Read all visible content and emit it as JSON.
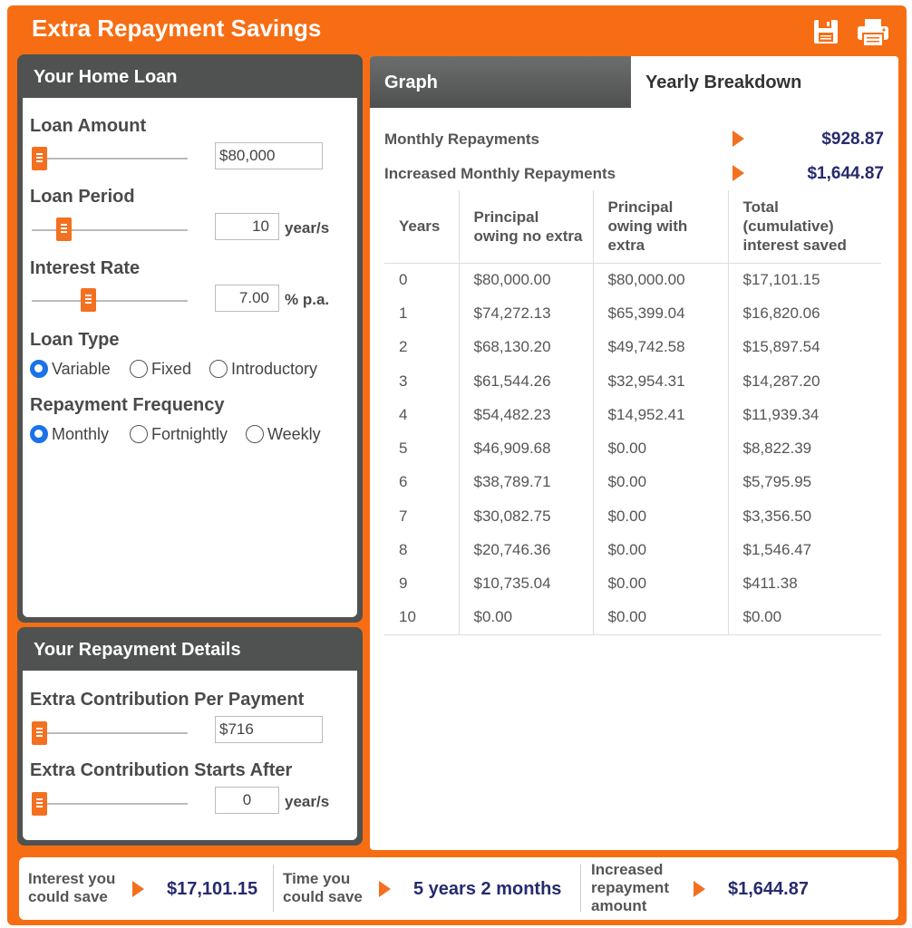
{
  "app": {
    "title": "Extra Repayment Savings"
  },
  "loan_panel": {
    "title": "Your Home Loan",
    "loan_amount": {
      "label": "Loan Amount",
      "value": "$80,000"
    },
    "loan_period": {
      "label": "Loan Period",
      "value": "10",
      "unit": "year/s"
    },
    "interest_rate": {
      "label": "Interest Rate",
      "value": "7.00",
      "unit": "% p.a."
    },
    "loan_type": {
      "label": "Loan Type",
      "options": [
        "Variable",
        "Fixed",
        "Introductory"
      ],
      "selected": "Variable"
    },
    "repayment_frequency": {
      "label": "Repayment Frequency",
      "options": [
        "Monthly",
        "Fortnightly",
        "Weekly"
      ],
      "selected": "Monthly"
    }
  },
  "repayment_panel": {
    "title": "Your Repayment Details",
    "extra_contribution": {
      "label": "Extra Contribution Per Payment",
      "value": "$716"
    },
    "starts_after": {
      "label": "Extra Contribution Starts After",
      "value": "0",
      "unit": "year/s"
    }
  },
  "tabs": {
    "graph": "Graph",
    "yearly": "Yearly Breakdown",
    "active": "Yearly Breakdown"
  },
  "summary": {
    "monthly_label": "Monthly Repayments",
    "monthly_value": "$928.87",
    "increased_label": "Increased Monthly Repayments",
    "increased_value": "$1,644.87"
  },
  "table": {
    "headers": [
      "Years",
      "Principal owing no extra",
      "Principal owing with extra",
      "Total (cumulative) interest saved"
    ],
    "rows": [
      [
        "0",
        "$80,000.00",
        "$80,000.00",
        "$17,101.15"
      ],
      [
        "1",
        "$74,272.13",
        "$65,399.04",
        "$16,820.06"
      ],
      [
        "2",
        "$68,130.20",
        "$49,742.58",
        "$15,897.54"
      ],
      [
        "3",
        "$61,544.26",
        "$32,954.31",
        "$14,287.20"
      ],
      [
        "4",
        "$54,482.23",
        "$14,952.41",
        "$11,939.34"
      ],
      [
        "5",
        "$46,909.68",
        "$0.00",
        "$8,822.39"
      ],
      [
        "6",
        "$38,789.71",
        "$0.00",
        "$5,795.95"
      ],
      [
        "7",
        "$30,082.75",
        "$0.00",
        "$3,356.50"
      ],
      [
        "8",
        "$20,746.36",
        "$0.00",
        "$1,546.47"
      ],
      [
        "9",
        "$10,735.04",
        "$0.00",
        "$411.38"
      ],
      [
        "10",
        "$0.00",
        "$0.00",
        "$0.00"
      ]
    ]
  },
  "footer": {
    "interest_label": "Interest you could save",
    "interest_value": "$17,101.15",
    "time_label": "Time you could save",
    "time_value": "5 years 2 months",
    "increased_label": "Increased repayment amount",
    "increased_value": "$1,644.87"
  },
  "icons": {
    "save": "save-icon",
    "print": "print-icon",
    "arrow": "arrow-right-icon"
  },
  "colors": {
    "brand_orange": "#f76d13",
    "panel_dark": "#4f5250",
    "value_navy": "#272a6e",
    "radio_blue": "#1a73e8"
  }
}
